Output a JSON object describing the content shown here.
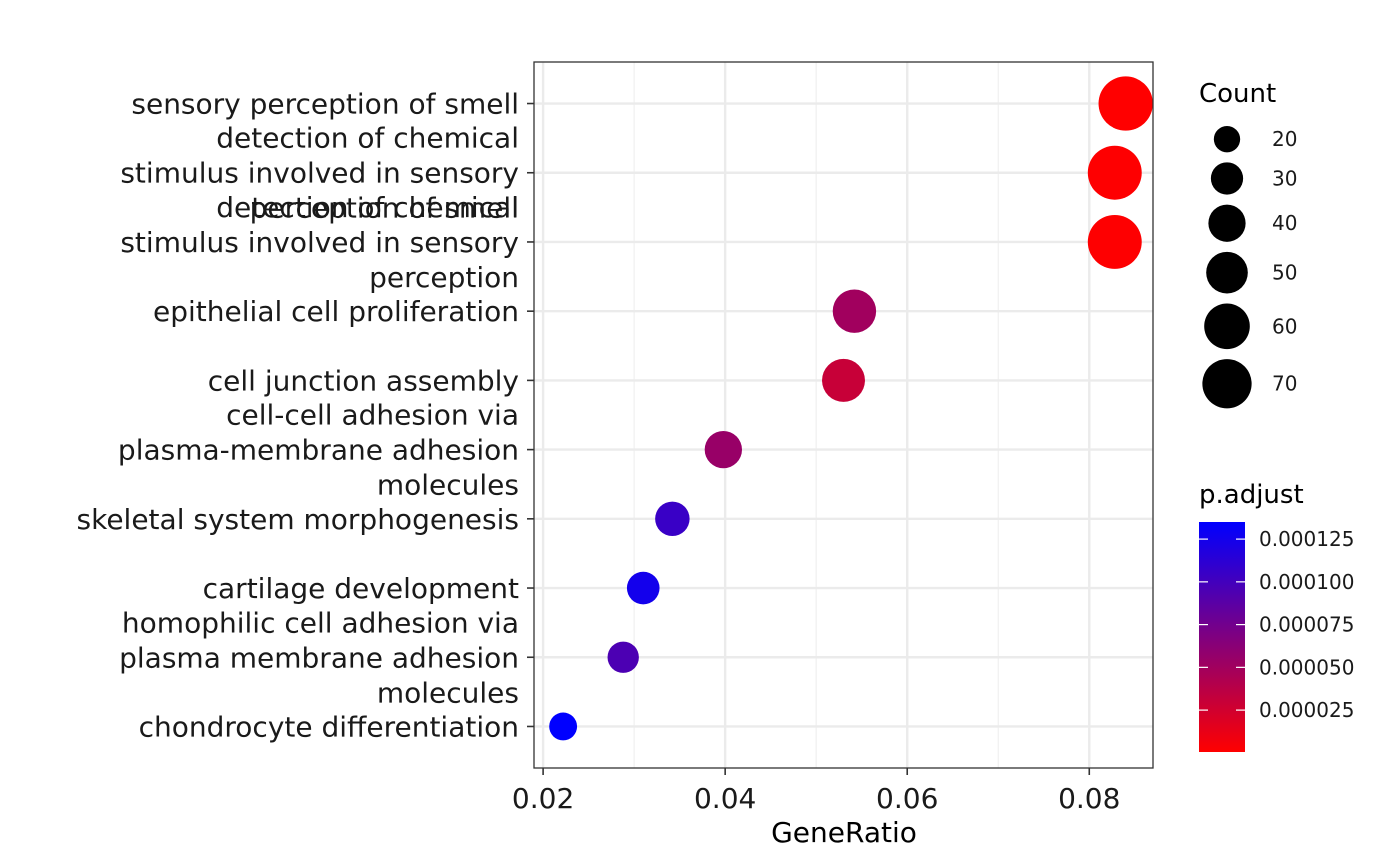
{
  "chart_data": {
    "type": "scatter",
    "xlabel": "GeneRatio",
    "ylabel": "",
    "xlim": [
      0.019,
      0.087
    ],
    "xticks": [
      0.02,
      0.04,
      0.06,
      0.08
    ],
    "xtick_labels": [
      "0.02",
      "0.04",
      "0.06",
      "0.08"
    ],
    "grid": true,
    "categories": [
      [
        "sensory perception of smell"
      ],
      [
        "detection of chemical",
        "stimulus involved in sensory",
        "perception of smell"
      ],
      [
        "detection of chemical",
        "stimulus involved in sensory",
        "perception"
      ],
      [
        "epithelial cell proliferation"
      ],
      [
        "cell junction assembly"
      ],
      [
        "cell-cell adhesion via",
        "plasma-membrane adhesion",
        "molecules"
      ],
      [
        "skeletal system morphogenesis"
      ],
      [
        "cartilage development"
      ],
      [
        "homophilic cell adhesion via",
        "plasma membrane adhesion",
        "molecules"
      ],
      [
        "chondrocyte differentiation"
      ]
    ],
    "points": [
      {
        "gene_ratio": 0.084,
        "count": 72,
        "p_adjust": 5e-07
      },
      {
        "gene_ratio": 0.0828,
        "count": 71,
        "p_adjust": 1e-06
      },
      {
        "gene_ratio": 0.0828,
        "count": 71,
        "p_adjust": 1e-06
      },
      {
        "gene_ratio": 0.0542,
        "count": 46,
        "p_adjust": 5e-05
      },
      {
        "gene_ratio": 0.053,
        "count": 45,
        "p_adjust": 3e-05
      },
      {
        "gene_ratio": 0.0398,
        "count": 34,
        "p_adjust": 5.5e-05
      },
      {
        "gene_ratio": 0.0342,
        "count": 29,
        "p_adjust": 0.000105
      },
      {
        "gene_ratio": 0.031,
        "count": 26,
        "p_adjust": 0.000125
      },
      {
        "gene_ratio": 0.0288,
        "count": 24,
        "p_adjust": 9.5e-05
      },
      {
        "gene_ratio": 0.0222,
        "count": 19,
        "p_adjust": 0.000135
      }
    ],
    "size_legend": {
      "title": "Count",
      "values": [
        20,
        30,
        40,
        50,
        60,
        70
      ],
      "labels": [
        "20",
        "30",
        "40",
        "50",
        "60",
        "70"
      ]
    },
    "color_legend": {
      "title": "p.adjust",
      "domain": [
        5e-07,
        0.000135
      ],
      "low_color": "#FF0000",
      "high_color": "#0000FF",
      "ticks": [
        2.5e-05,
        5e-05,
        7.5e-05,
        0.0001,
        0.000125
      ],
      "tick_labels": [
        "0.000025",
        "0.000050",
        "0.000075",
        "0.000100",
        "0.000125"
      ]
    }
  }
}
